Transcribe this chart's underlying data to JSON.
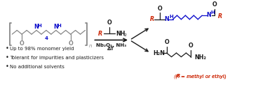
{
  "bg_color": "#ffffff",
  "bullet_points": [
    "Up to 98% monomer yield",
    "Tolerant for impurities and plasticizers",
    "No additional solvents"
  ],
  "reagents_line1": "Nb₂O₅, NH₃",
  "reagents_line2": "ΔT",
  "colors": {
    "black": "#1a1a1a",
    "blue": "#1111cc",
    "red": "#cc2200",
    "pgray": "#888888"
  }
}
